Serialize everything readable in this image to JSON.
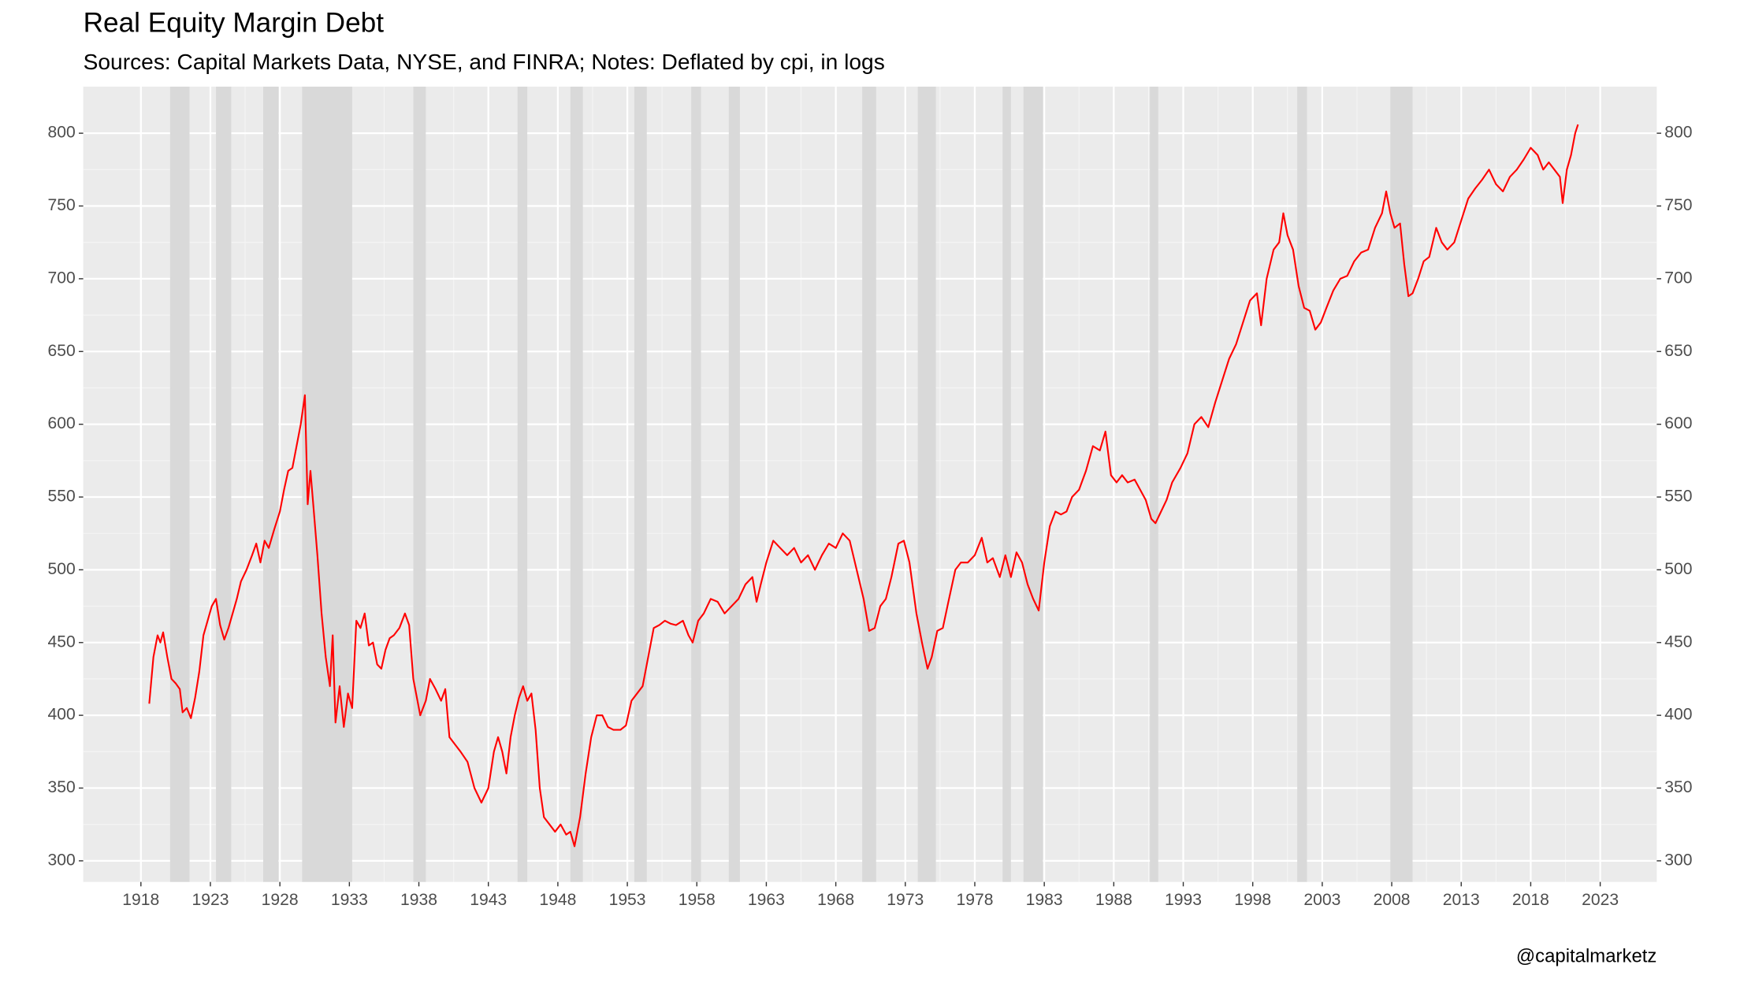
{
  "chart_data": {
    "type": "line",
    "title": "Real Equity Margin Debt",
    "subtitle": "Sources: Capital Markets Data, NYSE, and FINRA; Notes: Deflated by cpi, in logs",
    "caption": "@capitalmarketz",
    "xlim": [
      1913.85,
      2027.07
    ],
    "xticks": [
      1918,
      1923,
      1928,
      1933,
      1938,
      1943,
      1948,
      1953,
      1958,
      1963,
      1968,
      1973,
      1978,
      1983,
      1988,
      1993,
      1998,
      2003,
      2008,
      2013,
      2018,
      2023
    ],
    "ylim": [
      285.5,
      832
    ],
    "yticks": [
      300,
      350,
      400,
      450,
      500,
      550,
      600,
      650,
      700,
      750,
      800
    ],
    "y2lim": [
      285.5,
      832
    ],
    "y2ticks": [
      300,
      350,
      400,
      450,
      500,
      550,
      600,
      650,
      700,
      750,
      800
    ],
    "grid": true,
    "recession_color": "#d9d9d9",
    "recessions": [
      [
        1920.1,
        1921.5
      ],
      [
        1923.4,
        1924.5
      ],
      [
        1926.8,
        1927.9
      ],
      [
        1929.6,
        1933.2
      ],
      [
        1937.6,
        1938.5
      ],
      [
        1945.1,
        1945.8
      ],
      [
        1948.9,
        1949.8
      ],
      [
        1953.5,
        1954.4
      ],
      [
        1957.6,
        1958.3
      ],
      [
        1960.3,
        1961.1
      ],
      [
        1969.9,
        1970.9
      ],
      [
        1973.9,
        1975.2
      ],
      [
        1980.0,
        1980.6
      ],
      [
        1981.5,
        1982.9
      ],
      [
        1990.6,
        1991.2
      ],
      [
        2001.2,
        2001.9
      ],
      [
        2007.9,
        2009.5
      ]
    ],
    "x": [
      1918.6,
      1918.9,
      1919.2,
      1919.4,
      1919.6,
      1919.9,
      1920.2,
      1920.5,
      1920.8,
      1921.0,
      1921.3,
      1921.6,
      1921.9,
      1922.2,
      1922.5,
      1922.8,
      1923.1,
      1923.4,
      1923.7,
      1924.0,
      1924.3,
      1924.6,
      1924.9,
      1925.2,
      1925.6,
      1926.0,
      1926.3,
      1926.6,
      1926.9,
      1927.2,
      1927.6,
      1928.0,
      1928.3,
      1928.6,
      1928.9,
      1929.2,
      1929.5,
      1929.8,
      1930.0,
      1930.2,
      1930.4,
      1930.7,
      1931.0,
      1931.3,
      1931.6,
      1931.8,
      1932.0,
      1932.3,
      1932.6,
      1932.9,
      1933.2,
      1933.5,
      1933.8,
      1934.1,
      1934.4,
      1934.7,
      1935.0,
      1935.3,
      1935.6,
      1935.9,
      1936.2,
      1936.6,
      1937.0,
      1937.3,
      1937.6,
      1937.9,
      1938.1,
      1938.5,
      1938.8,
      1939.2,
      1939.6,
      1939.9,
      1940.2,
      1940.6,
      1941.0,
      1941.5,
      1942.0,
      1942.5,
      1943.0,
      1943.4,
      1943.7,
      1944.0,
      1944.3,
      1944.6,
      1944.9,
      1945.2,
      1945.5,
      1945.8,
      1946.1,
      1946.4,
      1946.7,
      1947.0,
      1947.4,
      1947.8,
      1948.2,
      1948.6,
      1948.9,
      1949.2,
      1949.6,
      1950.0,
      1950.4,
      1950.8,
      1951.2,
      1951.6,
      1952.0,
      1952.5,
      1952.9,
      1953.3,
      1953.7,
      1954.1,
      1954.5,
      1954.9,
      1955.3,
      1955.7,
      1956.1,
      1956.5,
      1957.0,
      1957.4,
      1957.7,
      1958.1,
      1958.5,
      1959.0,
      1959.5,
      1960.0,
      1960.5,
      1961.0,
      1961.5,
      1962.0,
      1962.3,
      1962.6,
      1963.0,
      1963.5,
      1964.0,
      1964.5,
      1965.0,
      1965.5,
      1966.0,
      1966.5,
      1967.0,
      1967.5,
      1968.0,
      1968.5,
      1969.0,
      1969.5,
      1970.0,
      1970.4,
      1970.8,
      1971.2,
      1971.6,
      1972.0,
      1972.5,
      1972.9,
      1973.3,
      1973.8,
      1974.2,
      1974.6,
      1974.9,
      1975.3,
      1975.7,
      1976.1,
      1976.6,
      1977.0,
      1977.5,
      1978.0,
      1978.5,
      1978.9,
      1979.3,
      1979.8,
      1980.2,
      1980.6,
      1981.0,
      1981.4,
      1981.8,
      1982.2,
      1982.6,
      1983.0,
      1983.4,
      1983.8,
      1984.2,
      1984.6,
      1985.0,
      1985.5,
      1986.0,
      1986.5,
      1987.0,
      1987.4,
      1987.8,
      1988.2,
      1988.6,
      1989.0,
      1989.5,
      1989.9,
      1990.3,
      1990.7,
      1991.0,
      1991.4,
      1991.8,
      1992.2,
      1992.8,
      1993.3,
      1993.8,
      1994.3,
      1994.8,
      1995.3,
      1995.8,
      1996.3,
      1996.8,
      1997.3,
      1997.8,
      1998.3,
      1998.6,
      1999.0,
      1999.5,
      1999.9,
      2000.2,
      2000.5,
      2000.9,
      2001.3,
      2001.7,
      2002.1,
      2002.5,
      2002.9,
      2003.3,
      2003.8,
      2004.3,
      2004.8,
      2005.3,
      2005.8,
      2006.3,
      2006.8,
      2007.3,
      2007.6,
      2007.9,
      2008.2,
      2008.6,
      2008.9,
      2009.2,
      2009.5,
      2009.9,
      2010.3,
      2010.7,
      2011.2,
      2011.6,
      2012.0,
      2012.5,
      2013.0,
      2013.5,
      2014.0,
      2014.5,
      2015.0,
      2015.5,
      2016.0,
      2016.5,
      2017.0,
      2017.5,
      2018.0,
      2018.5,
      2018.9,
      2019.3,
      2019.7,
      2020.1,
      2020.3,
      2020.6,
      2020.9,
      2021.2,
      2021.4
    ],
    "series": [
      {
        "name": "Real Equity Margin Debt",
        "color": "#ff0000",
        "values": [
          408,
          440,
          455,
          450,
          457,
          440,
          425,
          422,
          418,
          402,
          405,
          398,
          412,
          430,
          455,
          465,
          475,
          480,
          462,
          452,
          460,
          470,
          480,
          492,
          500,
          510,
          518,
          505,
          520,
          515,
          528,
          540,
          555,
          568,
          570,
          585,
          600,
          620,
          545,
          568,
          545,
          510,
          470,
          440,
          420,
          455,
          395,
          420,
          392,
          415,
          405,
          465,
          460,
          470,
          448,
          450,
          435,
          432,
          445,
          453,
          455,
          460,
          470,
          462,
          425,
          410,
          400,
          410,
          425,
          418,
          410,
          418,
          385,
          380,
          375,
          368,
          350,
          340,
          350,
          375,
          385,
          375,
          360,
          385,
          400,
          412,
          420,
          410,
          415,
          390,
          350,
          330,
          325,
          320,
          325,
          318,
          320,
          310,
          330,
          360,
          385,
          400,
          400,
          392,
          390,
          390,
          393,
          410,
          415,
          420,
          440,
          460,
          462,
          465,
          463,
          462,
          465,
          455,
          450,
          465,
          470,
          480,
          478,
          470,
          475,
          480,
          490,
          495,
          478,
          490,
          505,
          520,
          515,
          510,
          515,
          505,
          510,
          500,
          510,
          518,
          515,
          525,
          520,
          500,
          480,
          458,
          460,
          475,
          480,
          495,
          518,
          520,
          505,
          470,
          450,
          432,
          440,
          458,
          460,
          478,
          500,
          505,
          505,
          510,
          522,
          505,
          508,
          495,
          510,
          495,
          512,
          505,
          490,
          480,
          472,
          505,
          530,
          540,
          538,
          540,
          550,
          555,
          568,
          585,
          582,
          595,
          565,
          560,
          565,
          560,
          562,
          555,
          548,
          535,
          532,
          540,
          548,
          560,
          570,
          580,
          600,
          605,
          598,
          615,
          630,
          645,
          655,
          670,
          685,
          690,
          668,
          700,
          720,
          725,
          745,
          730,
          720,
          695,
          680,
          678,
          665,
          670,
          680,
          692,
          700,
          702,
          712,
          718,
          720,
          735,
          745,
          760,
          745,
          735,
          738,
          710,
          688,
          690,
          700,
          712,
          715,
          735,
          725,
          720,
          725,
          740,
          755,
          762,
          768,
          775,
          765,
          760,
          770,
          775,
          782,
          790,
          785,
          775,
          780,
          775,
          770,
          752,
          775,
          785,
          800,
          806
        ]
      }
    ]
  }
}
